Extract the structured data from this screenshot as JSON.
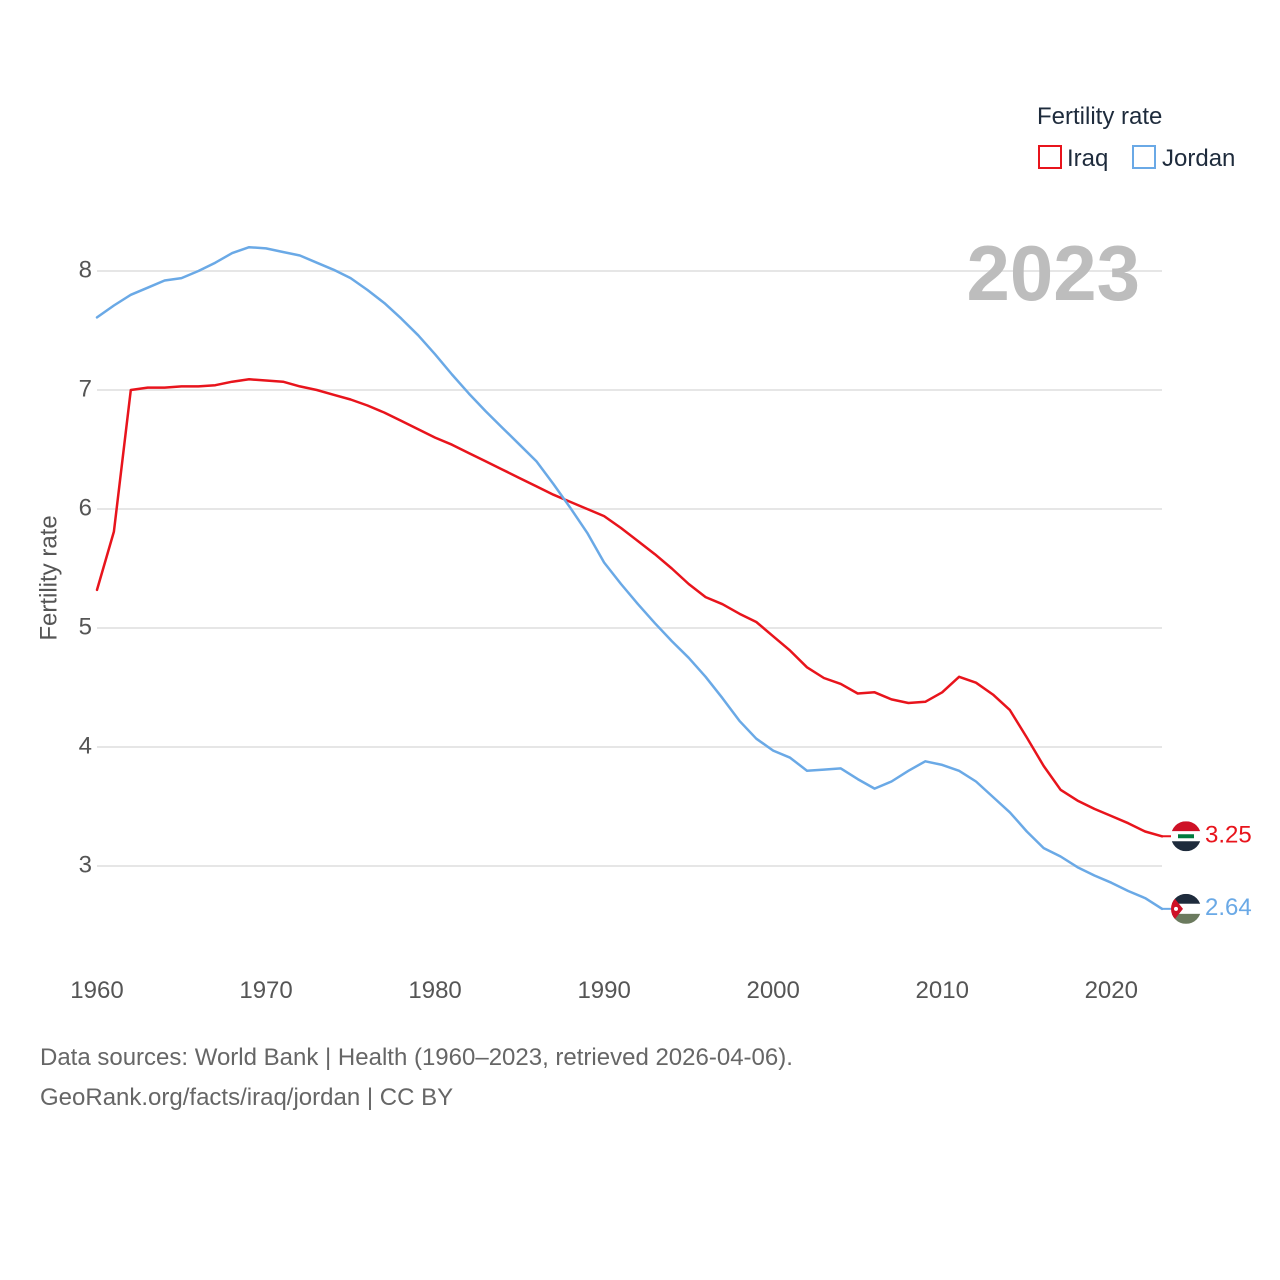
{
  "colors": {
    "iraq": "#e8141c",
    "jordan": "#6aa9e6",
    "grid": "#e6e6e6",
    "year": "#bdbdbd"
  },
  "footer": {
    "line1": "Data sources: World Bank | Health (1960–2023, retrieved 2026-04-06).",
    "line2": "GeoRank.org/facts/iraq/jordan | CC BY"
  },
  "chart_data": {
    "type": "line",
    "title": "",
    "year_badge": "2023",
    "legend_title": "Fertility rate",
    "xlabel": "",
    "ylabel": "Fertility rate",
    "xlim": [
      1960,
      2023
    ],
    "ylim": [
      2.5,
      8.5
    ],
    "x_ticks": [
      1960,
      1970,
      1980,
      1990,
      2000,
      2010,
      2020
    ],
    "y_ticks": [
      3,
      4,
      5,
      6,
      7,
      8
    ],
    "x": [
      1960,
      1961,
      1962,
      1963,
      1964,
      1965,
      1966,
      1967,
      1968,
      1969,
      1970,
      1971,
      1972,
      1973,
      1974,
      1975,
      1976,
      1977,
      1978,
      1979,
      1980,
      1981,
      1982,
      1983,
      1984,
      1985,
      1986,
      1987,
      1988,
      1989,
      1990,
      1991,
      1992,
      1993,
      1994,
      1995,
      1996,
      1997,
      1998,
      1999,
      2000,
      2001,
      2002,
      2003,
      2004,
      2005,
      2006,
      2007,
      2008,
      2009,
      2010,
      2011,
      2012,
      2013,
      2014,
      2015,
      2016,
      2017,
      2018,
      2019,
      2020,
      2021,
      2022,
      2023
    ],
    "series": [
      {
        "name": "Iraq",
        "color_key": "iraq",
        "end_label": "3.25",
        "values": [
          5.32,
          5.81,
          7.0,
          7.02,
          7.02,
          7.03,
          7.03,
          7.04,
          7.07,
          7.09,
          7.08,
          7.07,
          7.03,
          7.0,
          6.96,
          6.92,
          6.87,
          6.81,
          6.74,
          6.67,
          6.6,
          6.54,
          6.47,
          6.4,
          6.33,
          6.26,
          6.19,
          6.12,
          6.06,
          6.0,
          5.94,
          5.84,
          5.73,
          5.62,
          5.5,
          5.37,
          5.26,
          5.2,
          5.12,
          5.05,
          4.93,
          4.81,
          4.67,
          4.58,
          4.53,
          4.45,
          4.46,
          4.4,
          4.37,
          4.38,
          4.46,
          4.59,
          4.54,
          4.44,
          4.31,
          4.08,
          3.84,
          3.64,
          3.55,
          3.48,
          3.42,
          3.36,
          3.29,
          3.25
        ]
      },
      {
        "name": "Jordan",
        "color_key": "jordan",
        "end_label": "2.64",
        "values": [
          7.61,
          7.71,
          7.8,
          7.86,
          7.92,
          7.94,
          8.0,
          8.07,
          8.15,
          8.2,
          8.19,
          8.16,
          8.13,
          8.07,
          8.01,
          7.94,
          7.84,
          7.73,
          7.6,
          7.46,
          7.3,
          7.13,
          6.97,
          6.82,
          6.68,
          6.54,
          6.4,
          6.21,
          6.01,
          5.8,
          5.55,
          5.37,
          5.2,
          5.04,
          4.89,
          4.75,
          4.59,
          4.41,
          4.22,
          4.07,
          3.97,
          3.91,
          3.8,
          3.81,
          3.82,
          3.73,
          3.65,
          3.71,
          3.8,
          3.88,
          3.85,
          3.8,
          3.71,
          3.58,
          3.45,
          3.29,
          3.15,
          3.08,
          2.99,
          2.92,
          2.86,
          2.79,
          2.73,
          2.64
        ]
      }
    ]
  }
}
